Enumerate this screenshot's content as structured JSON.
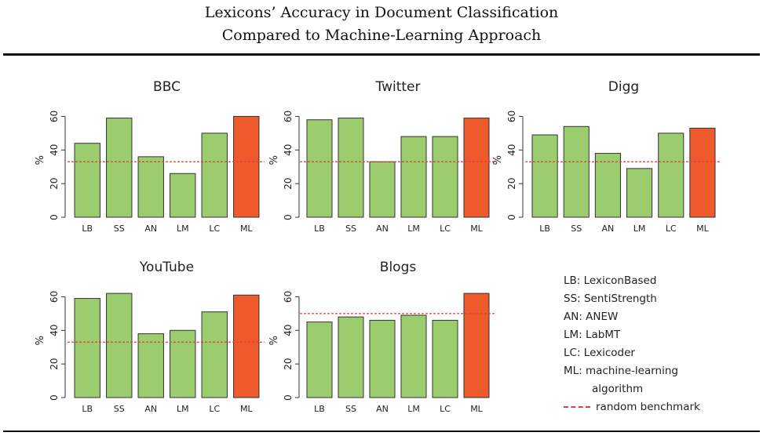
{
  "title": {
    "line1": "Lexicons’ Accuracy in Document Classification",
    "line2": "Compared to Machine-Learning Approach"
  },
  "colors": {
    "bar": "#9bcc6e",
    "ml_bar": "#ef5a2c",
    "benchmark": "#e43c3c",
    "axis": "#333333"
  },
  "chart_data": [
    {
      "type": "bar",
      "title": "BBC",
      "ylabel": "%",
      "ylim": [
        0,
        70
      ],
      "yticks": [
        0,
        20,
        40,
        60
      ],
      "categories": [
        "LB",
        "SS",
        "AN",
        "LM",
        "LC",
        "ML"
      ],
      "values": [
        44,
        59,
        36,
        26,
        50,
        60
      ],
      "benchmark": 33
    },
    {
      "type": "bar",
      "title": "Twitter",
      "ylabel": "%",
      "ylim": [
        0,
        70
      ],
      "yticks": [
        0,
        20,
        40,
        60
      ],
      "categories": [
        "LB",
        "SS",
        "AN",
        "LM",
        "LC",
        "ML"
      ],
      "values": [
        58,
        59,
        33,
        48,
        48,
        59
      ],
      "benchmark": 33
    },
    {
      "type": "bar",
      "title": "Digg",
      "ylabel": "%",
      "ylim": [
        0,
        70
      ],
      "yticks": [
        0,
        20,
        40,
        60
      ],
      "categories": [
        "LB",
        "SS",
        "AN",
        "LM",
        "LC",
        "ML"
      ],
      "values": [
        49,
        54,
        38,
        29,
        50,
        53
      ],
      "benchmark": 33
    },
    {
      "type": "bar",
      "title": "YouTube",
      "ylabel": "%",
      "ylim": [
        0,
        70
      ],
      "yticks": [
        0,
        20,
        40,
        60
      ],
      "categories": [
        "LB",
        "SS",
        "AN",
        "LM",
        "LC",
        "ML"
      ],
      "values": [
        59,
        62,
        38,
        40,
        51,
        61
      ],
      "benchmark": 33
    },
    {
      "type": "bar",
      "title": "Blogs",
      "ylabel": "%",
      "ylim": [
        0,
        70
      ],
      "yticks": [
        0,
        20,
        40,
        60
      ],
      "categories": [
        "LB",
        "SS",
        "AN",
        "LM",
        "LC",
        "ML"
      ],
      "values": [
        45,
        48,
        46,
        49,
        46,
        62
      ],
      "benchmark": 50
    }
  ],
  "legend": {
    "items": [
      "LB: LexiconBased",
      "SS: SentiStrength",
      "AN: ANEW",
      "LM: LabMT",
      "LC: Lexicoder",
      "ML: machine-learning"
    ],
    "continuation": "algorithm",
    "benchmark_label": "random benchmark"
  }
}
